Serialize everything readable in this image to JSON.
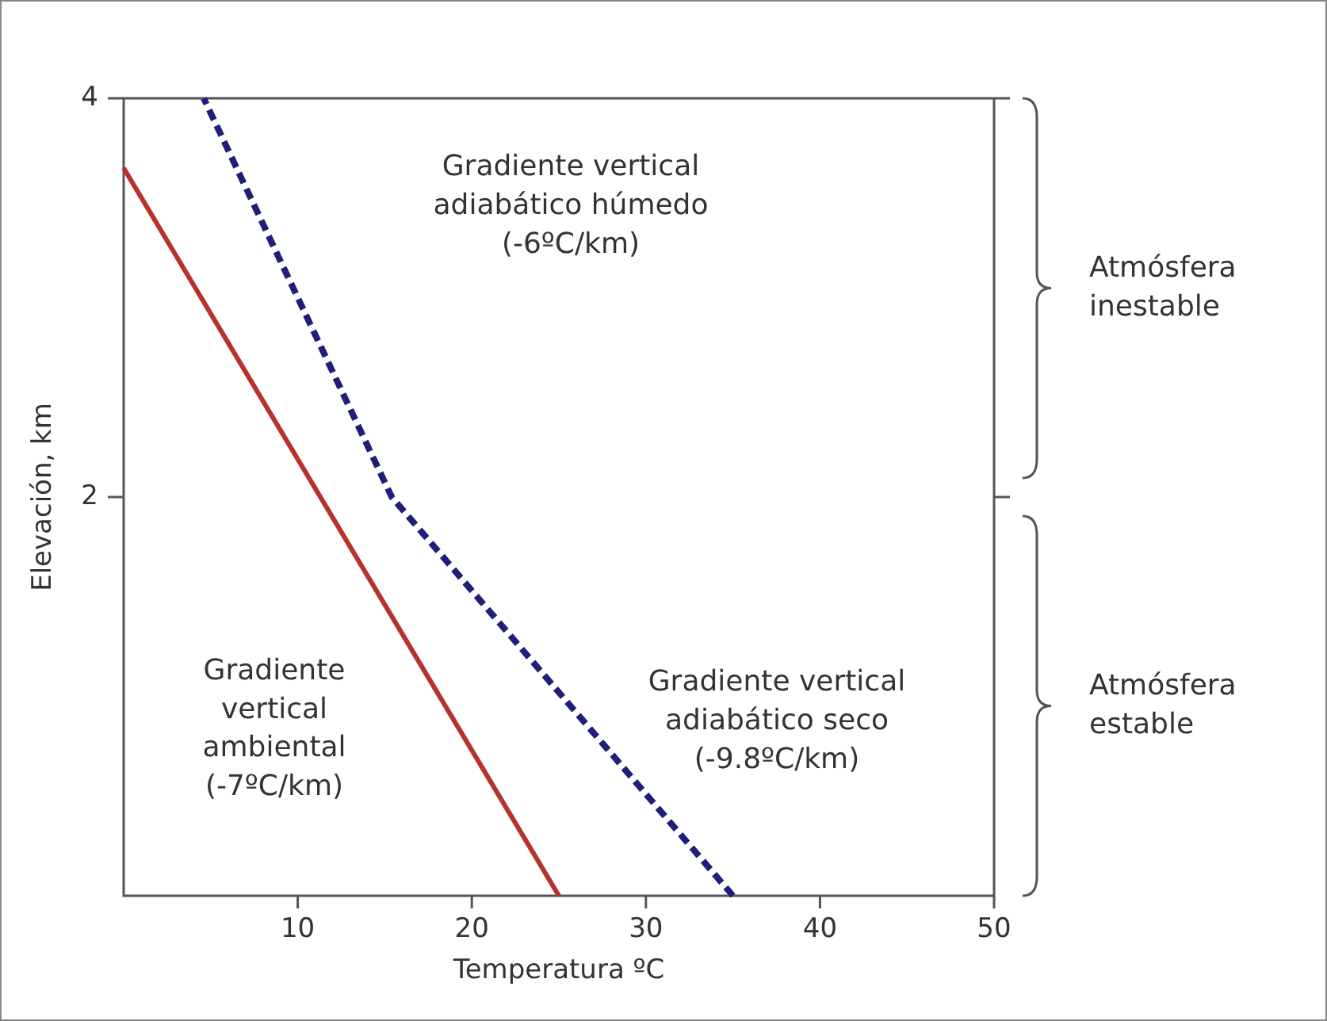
{
  "chart_data": {
    "type": "line",
    "xlabel": "Temperatura ºC",
    "ylabel": "Elevación, km",
    "xlim": [
      0,
      50
    ],
    "ylim": [
      0,
      4
    ],
    "xticks": [
      10,
      20,
      30,
      40,
      50
    ],
    "yticks": [
      2,
      4
    ],
    "grid": false,
    "series": [
      {
        "color": "#b5332b",
        "x": [
          0,
          25
        ],
        "values": [
          3.65,
          0
        ],
        "line_style": "solid"
      },
      {
        "color": "#1f1f7a",
        "x": [
          35,
          15.4,
          4.6
        ],
        "values": [
          0,
          2,
          4
        ],
        "line_style": "dashed"
      }
    ],
    "annotations": [
      "Gradiente vertical\nadiabático húmedo\n(-6ºC/km)",
      "Gradiente\nvertical\nambiental\n(-7ºC/km)",
      "Gradiente vertical\nadiabático seco\n(-9.8ºC/km)",
      "Atmósfera\ninestable",
      "Atmósfera\nestable"
    ]
  }
}
